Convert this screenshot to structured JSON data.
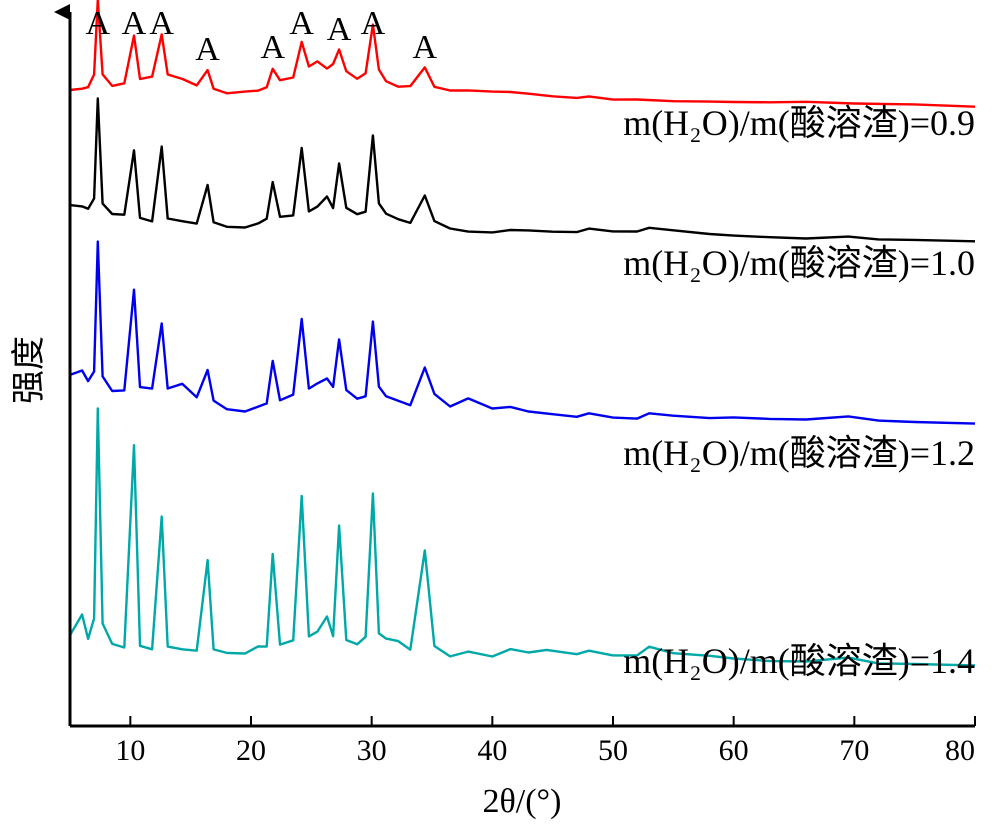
{
  "chart_data": {
    "type": "line",
    "xlabel": "2θ/(°)",
    "ylabel": "强度",
    "xlim": [
      5,
      80
    ],
    "x_ticks": [
      10,
      20,
      30,
      40,
      50,
      60,
      70,
      80
    ],
    "grid": false,
    "peak_marker_symbol": "A",
    "peak_marker_positions": [
      7.3,
      10.3,
      12.6,
      16.4,
      21.8,
      24.2,
      27.3,
      30.1,
      34.4
    ],
    "series": [
      {
        "name": "m(H₂O)/m(酸溶渣)=0.9",
        "color": "#ff0000",
        "x": [
          5,
          6,
          6.5,
          7,
          7.3,
          7.7,
          8.5,
          9.5,
          10.3,
          10.8,
          11.8,
          12.6,
          13.1,
          14.3,
          15.5,
          16.4,
          16.9,
          18,
          19.5,
          20.6,
          21.3,
          21.8,
          22.4,
          23.5,
          24.2,
          24.8,
          25.5,
          26.3,
          26.8,
          27.3,
          27.9,
          28.8,
          29.5,
          30.1,
          30.6,
          31.2,
          32.2,
          33.2,
          34.4,
          35.2,
          36.5,
          38,
          40,
          41.5,
          43,
          45,
          47,
          48,
          50,
          52,
          55,
          58,
          60,
          63,
          66,
          70,
          75,
          80
        ],
        "y": [
          0.08,
          0.1,
          0.12,
          0.25,
          1.0,
          0.25,
          0.13,
          0.15,
          0.62,
          0.18,
          0.2,
          0.62,
          0.22,
          0.18,
          0.12,
          0.28,
          0.1,
          0.06,
          0.08,
          0.09,
          0.12,
          0.3,
          0.18,
          0.2,
          0.55,
          0.3,
          0.35,
          0.28,
          0.33,
          0.48,
          0.27,
          0.2,
          0.26,
          0.75,
          0.3,
          0.18,
          0.12,
          0.12,
          0.3,
          0.1,
          0.06,
          0.06,
          0.05,
          0.05,
          0.04,
          0.02,
          0.01,
          0.03,
          0.0,
          0.0,
          -0.02,
          -0.03,
          -0.04,
          -0.05,
          -0.05,
          -0.07,
          -0.08,
          -0.1
        ]
      },
      {
        "name": "m(H₂O)/m(酸溶渣)=1.0",
        "color": "#000000",
        "x": [
          5,
          6,
          6.5,
          7,
          7.3,
          7.7,
          8.5,
          9.5,
          10.3,
          10.8,
          11.8,
          12.6,
          13.1,
          14.3,
          15.5,
          16.4,
          16.9,
          18,
          19.5,
          20.6,
          21.3,
          21.8,
          22.4,
          23.5,
          24.2,
          24.8,
          25.5,
          26.3,
          26.8,
          27.3,
          27.9,
          28.8,
          29.5,
          30.1,
          30.6,
          31.2,
          32.2,
          33.2,
          34.4,
          35.2,
          36.5,
          38,
          40,
          41.5,
          43,
          45,
          47,
          48,
          50,
          52,
          53,
          55,
          58,
          60,
          63,
          66,
          69.5,
          72,
          75,
          80
        ],
        "y": [
          0.3,
          0.28,
          0.25,
          0.35,
          1.35,
          0.3,
          0.2,
          0.2,
          0.85,
          0.18,
          0.15,
          0.9,
          0.18,
          0.15,
          0.12,
          0.5,
          0.12,
          0.07,
          0.06,
          0.1,
          0.15,
          0.52,
          0.18,
          0.2,
          0.88,
          0.25,
          0.3,
          0.4,
          0.28,
          0.72,
          0.27,
          0.2,
          0.22,
          0.98,
          0.3,
          0.2,
          0.15,
          0.12,
          0.4,
          0.15,
          0.08,
          0.05,
          0.04,
          0.06,
          0.05,
          0.03,
          0.02,
          0.05,
          0.02,
          0.02,
          0.06,
          0.04,
          0.01,
          0.0,
          -0.01,
          -0.02,
          0.0,
          -0.03,
          -0.04,
          -0.06
        ]
      },
      {
        "name": "m(H₂O)/m(酸溶渣)=1.2",
        "color": "#0000ee",
        "x": [
          5,
          6,
          6.5,
          7,
          7.3,
          7.7,
          8.5,
          9.5,
          10.3,
          10.8,
          11.8,
          12.6,
          13.1,
          14.3,
          15.5,
          16.4,
          16.9,
          18,
          19.5,
          20.6,
          21.3,
          21.8,
          22.4,
          23.5,
          24.2,
          24.8,
          25.5,
          26.3,
          26.8,
          27.3,
          27.9,
          28.8,
          29.5,
          30.1,
          30.6,
          31.2,
          32.2,
          33.2,
          34.4,
          35.2,
          36.5,
          38,
          40,
          41.5,
          43,
          45,
          47,
          48,
          50,
          52,
          53,
          55,
          58,
          60,
          63,
          66,
          69.5,
          72,
          75,
          80
        ],
        "y": [
          0.45,
          0.5,
          0.4,
          0.5,
          1.8,
          0.45,
          0.3,
          0.3,
          1.3,
          0.32,
          0.3,
          0.95,
          0.3,
          0.35,
          0.22,
          0.5,
          0.2,
          0.12,
          0.1,
          0.15,
          0.18,
          0.6,
          0.2,
          0.25,
          1.0,
          0.3,
          0.35,
          0.4,
          0.32,
          0.8,
          0.3,
          0.22,
          0.25,
          1.0,
          0.35,
          0.25,
          0.2,
          0.15,
          0.52,
          0.25,
          0.12,
          0.2,
          0.1,
          0.12,
          0.08,
          0.06,
          0.04,
          0.08,
          0.04,
          0.03,
          0.08,
          0.05,
          0.02,
          0.02,
          0.0,
          -0.01,
          0.02,
          -0.02,
          -0.03,
          -0.04
        ]
      },
      {
        "name": "m(H₂O)/m(酸溶渣)=1.4",
        "color": "#00a8a8",
        "x": [
          5,
          6,
          6.5,
          7,
          7.3,
          7.7,
          8.5,
          9.5,
          10.3,
          10.8,
          11.8,
          12.6,
          13.1,
          14.3,
          15.5,
          16.4,
          16.9,
          18,
          19.5,
          20.6,
          21.3,
          21.8,
          22.4,
          23.5,
          24.2,
          24.8,
          25.5,
          26.3,
          26.8,
          27.3,
          27.9,
          28.8,
          29.5,
          30.1,
          30.6,
          31.2,
          32.2,
          33.2,
          34.4,
          35.2,
          36.5,
          38,
          40,
          41.5,
          43,
          44.5,
          47,
          48,
          50,
          52,
          53,
          55,
          58,
          60,
          63,
          66,
          69.5,
          72,
          75,
          80
        ],
        "y": [
          0.25,
          0.45,
          0.2,
          0.4,
          2.5,
          0.35,
          0.15,
          0.12,
          2.15,
          0.15,
          0.12,
          1.45,
          0.15,
          0.12,
          0.1,
          1.0,
          0.1,
          0.06,
          0.05,
          0.12,
          0.12,
          1.05,
          0.15,
          0.2,
          1.65,
          0.25,
          0.3,
          0.45,
          0.25,
          1.35,
          0.2,
          0.15,
          0.22,
          1.65,
          0.25,
          0.2,
          0.18,
          0.1,
          1.1,
          0.15,
          0.05,
          0.1,
          0.05,
          0.12,
          0.08,
          0.1,
          0.05,
          0.08,
          0.03,
          0.03,
          0.12,
          0.06,
          0.04,
          0.02,
          0.0,
          0.0,
          0.04,
          -0.02,
          -0.03,
          -0.05
        ]
      }
    ]
  }
}
